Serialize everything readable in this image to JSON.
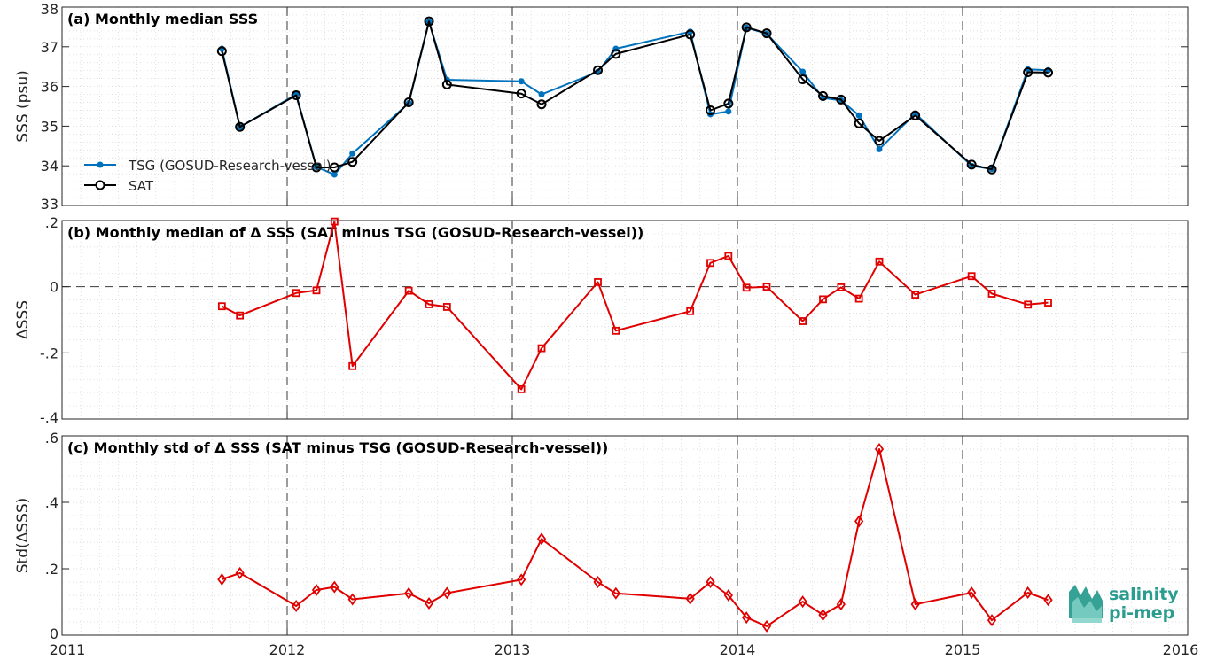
{
  "chart_data": [
    {
      "type": "line",
      "title": "(a) Monthly median SSS",
      "ylabel": "SSS (psu)",
      "xlim": [
        2011,
        2016
      ],
      "ylim": [
        33,
        38
      ],
      "yticks": [
        33,
        34,
        35,
        36,
        37,
        38
      ],
      "grid": true,
      "legend_position": "bottom-left",
      "series": [
        {
          "name": "TSG (GOSUD-Research-vessel)",
          "color": "#0072BD",
          "marker": "dot",
          "x": [
            2011.71,
            2011.79,
            2012.04,
            2012.13,
            2012.21,
            2012.29,
            2012.54,
            2012.63,
            2012.71,
            2013.04,
            2013.13,
            2013.38,
            2013.46,
            2013.79,
            2013.88,
            2013.96,
            2014.04,
            2014.13,
            2014.29,
            2014.38,
            2014.46,
            2014.54,
            2014.63,
            2014.79,
            2015.04,
            2015.13,
            2015.29,
            2015.38
          ],
          "values": [
            36.95,
            34.98,
            35.8,
            33.97,
            33.78,
            34.31,
            35.58,
            37.63,
            36.17,
            36.13,
            35.8,
            36.37,
            36.95,
            37.38,
            35.3,
            35.37,
            37.48,
            37.33,
            36.37,
            35.71,
            35.65,
            35.27,
            34.42,
            35.32,
            34.0,
            33.92,
            36.43,
            36.41
          ]
        },
        {
          "name": "SAT",
          "color": "#000000",
          "marker": "circle",
          "x": [
            2011.71,
            2011.79,
            2012.04,
            2012.13,
            2012.21,
            2012.29,
            2012.54,
            2012.63,
            2012.71,
            2013.04,
            2013.13,
            2013.38,
            2013.46,
            2013.79,
            2013.88,
            2013.96,
            2014.04,
            2014.13,
            2014.29,
            2014.38,
            2014.46,
            2014.54,
            2014.63,
            2014.79,
            2015.04,
            2015.13,
            2015.29,
            2015.38
          ],
          "values": [
            36.89,
            34.98,
            35.78,
            33.96,
            33.96,
            34.1,
            35.6,
            37.64,
            36.05,
            35.82,
            35.55,
            36.41,
            36.82,
            37.31,
            35.4,
            35.57,
            37.49,
            37.34,
            36.18,
            35.76,
            35.67,
            35.07,
            34.63,
            35.27,
            34.03,
            33.91,
            36.36,
            36.35
          ]
        }
      ]
    },
    {
      "type": "line",
      "title": "(b) Monthly median of Δ SSS (SAT minus TSG (GOSUD-Research-vessel))",
      "ylabel": "ΔSSS",
      "xlim": [
        2011,
        2016
      ],
      "ylim": [
        -0.4,
        0.2
      ],
      "yticks": [
        -0.4,
        -0.2,
        0,
        0.2
      ],
      "zero_line": true,
      "grid": true,
      "series": [
        {
          "color": "#E00000",
          "marker": "square",
          "x": [
            2011.71,
            2011.79,
            2012.04,
            2012.13,
            2012.21,
            2012.29,
            2012.54,
            2012.63,
            2012.71,
            2013.04,
            2013.13,
            2013.38,
            2013.46,
            2013.79,
            2013.88,
            2013.96,
            2014.04,
            2014.13,
            2014.29,
            2014.38,
            2014.46,
            2014.54,
            2014.63,
            2014.79,
            2015.04,
            2015.13,
            2015.29,
            2015.38
          ],
          "values": [
            -0.059,
            -0.087,
            -0.019,
            -0.011,
            0.197,
            -0.24,
            -0.012,
            -0.053,
            -0.061,
            -0.31,
            -0.186,
            0.014,
            -0.133,
            -0.074,
            0.072,
            0.093,
            -0.003,
            0.0,
            -0.104,
            -0.038,
            -0.002,
            -0.036,
            0.076,
            -0.024,
            0.032,
            -0.021,
            -0.054,
            -0.048
          ]
        }
      ]
    },
    {
      "type": "line",
      "title": "(c) Monthly std of Δ SSS (SAT minus TSG (GOSUD-Research-vessel))",
      "ylabel": "Std(ΔSSS)",
      "xlim": [
        2011,
        2016
      ],
      "ylim": [
        0,
        0.6
      ],
      "yticks": [
        0,
        0.2,
        0.4,
        0.6
      ],
      "xticks": [
        2011,
        2012,
        2013,
        2014,
        2015,
        2016
      ],
      "grid": true,
      "series": [
        {
          "color": "#E00000",
          "marker": "diamond",
          "x": [
            2011.71,
            2011.79,
            2012.04,
            2012.13,
            2012.21,
            2012.29,
            2012.54,
            2012.63,
            2012.71,
            2013.04,
            2013.13,
            2013.38,
            2013.46,
            2013.79,
            2013.88,
            2013.96,
            2014.04,
            2014.13,
            2014.29,
            2014.38,
            2014.46,
            2014.54,
            2014.63,
            2014.79,
            2015.04,
            2015.13,
            2015.29,
            2015.38
          ],
          "values": [
            0.168,
            0.187,
            0.088,
            0.136,
            0.145,
            0.108,
            0.126,
            0.096,
            0.127,
            0.167,
            0.29,
            0.16,
            0.126,
            0.11,
            0.16,
            0.12,
            0.053,
            0.027,
            0.101,
            0.061,
            0.093,
            0.343,
            0.56,
            0.093,
            0.128,
            0.045,
            0.128,
            0.106
          ]
        }
      ]
    }
  ],
  "logo": {
    "line1": "salinity",
    "line2": "pi-mep",
    "color": "#2a9d8f"
  }
}
